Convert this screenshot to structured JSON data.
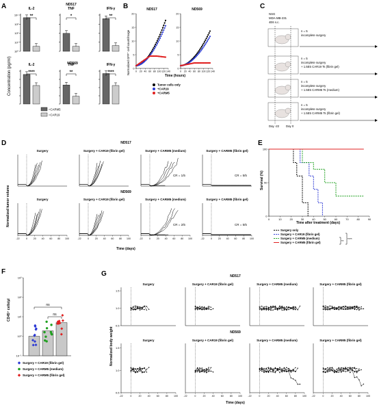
{
  "panels": {
    "A": {
      "letter": "A",
      "ylabel": "Concentration (pg/ml)",
      "rows": [
        {
          "line_title": "",
          "subplots": [
            {
              "title": "IL-2",
              "sig": "**",
              "values": [
                12000,
                4
              ]
            },
            {
              "title": "ND517\nTNF",
              "sig": "*",
              "values": [
                150,
                4
              ]
            },
            {
              "title": "IFN-γ",
              "sig": "**",
              "values": [
                9000,
                5
              ]
            }
          ]
        },
        {
          "line_title": "ND569",
          "subplots": [
            {
              "title": "IL-2",
              "sig": "****",
              "values": [
                9000,
                300
              ]
            },
            {
              "title": "TNF",
              "sig": "**",
              "values": [
                350,
                11
              ]
            },
            {
              "title": "IFN-γ",
              "sig": "****",
              "values": [
                12000,
                300
              ]
            }
          ]
        }
      ],
      "ticks_row1": [
        "10⁴",
        "10³",
        "10²",
        "10¹",
        "10⁰"
      ],
      "legend": [
        "=CARM5",
        "=CAR19"
      ],
      "colors": {
        "carm5": "#666666",
        "car19": "#cccccc"
      }
    },
    "B": {
      "letter": "B",
      "titles": [
        "ND517",
        "ND569"
      ],
      "ylabel": "Normalized GFP⁺ cell count/image",
      "xlabel": "Time (hours)",
      "xticks": [
        "0",
        "20",
        "40",
        "60",
        "80",
        "100",
        "120",
        "140"
      ],
      "yticks": [
        "0",
        "5",
        "10",
        "15",
        "20"
      ],
      "legend": [
        "Tumor cells only",
        "+CAR19",
        "+CARM5"
      ],
      "colors": [
        "#000000",
        "#2b3bd6",
        "#e02020"
      ]
    },
    "C": {
      "letter": "C",
      "header": [
        "NSG",
        "MDA-MB-231",
        "4E6 s.c."
      ],
      "groups": [
        {
          "n": "n = 5",
          "desc": [
            "incomplete surgery"
          ]
        },
        {
          "n": "n = 5",
          "desc": [
            "incomplete surgery",
            "+ 1.5E5 CAR19 Ts (fibrin gel)"
          ]
        },
        {
          "n": "n = 5",
          "desc": [
            "incomplete surgery",
            "+ 1.5E5 CARM5 Ts (medium)"
          ]
        },
        {
          "n": "n = 5",
          "desc": [
            "incomplete surgery",
            "+ 1.5E5 CARM5 Ts (fibrin gel)"
          ]
        }
      ],
      "days": [
        "Day -22",
        "Day 0"
      ]
    },
    "D": {
      "letter": "D",
      "line1": "ND517",
      "line2": "ND569",
      "ylabel": "Normalized tumor volume",
      "xlabel": "Time (days)",
      "cols": [
        "Surgery",
        "Surgery + CAR19 (fibrin gel)",
        "Surgery + CARM5 (medium)",
        "Surgery + CARM5 (fibrin gel)"
      ],
      "cr_row1": [
        "",
        "",
        "CR = 1/5",
        "CR = 5/5"
      ],
      "cr_row2": [
        "",
        "",
        "CR = 2/5",
        "CR = 5/5"
      ],
      "xticks": [
        "-22",
        "0",
        "20",
        "40",
        "60",
        "80",
        "100"
      ]
    },
    "E": {
      "letter": "E",
      "ylabel": "Survival (%)",
      "xlabel": "Time after treatment (days)",
      "xticks": [
        "0",
        "10",
        "20",
        "30",
        "40",
        "50",
        "60",
        "70",
        "80",
        "90"
      ],
      "yticks": [
        "0",
        "50",
        "100"
      ],
      "legend": [
        "Surgery only",
        "Surgery + CAR19 (fibrin gel)",
        "Surgery + CARM5 (medium)",
        "Surgery + CARM5 (fibrin gel)"
      ],
      "colors": [
        "#000000",
        "#2a37d4",
        "#1fa01f",
        "#e02020"
      ],
      "sig": [
        "**",
        "****"
      ]
    },
    "F": {
      "letter": "F",
      "ylabel": "CD45⁺ cells/µl",
      "sig": [
        "ns",
        "ns"
      ],
      "yticks": [
        "10³",
        "10²",
        "10¹",
        "10⁰",
        "10⁻¹"
      ],
      "means": [
        1,
        1.9,
        5
      ],
      "legend": [
        "Surgery + CAR19 (fibrin gel)",
        "Surgery + CARM5 (medium)",
        "Surgery + CARM5 (fibrin gel)"
      ],
      "colors": [
        "#2a37d4",
        "#1fa01f",
        "#e02020"
      ]
    },
    "G": {
      "letter": "G",
      "line1": "ND517",
      "line2": "ND569",
      "ylabel": "Normalized body weight",
      "xlabel": "Time (days)",
      "cols": [
        "Surgery",
        "Surgery + CAR19 (fibrin gel)",
        "Surgery + CARM5 (medium)",
        "Surgery + CARM5 (fibrin gel)"
      ],
      "yticks": [
        "1.5",
        "1.0",
        "0.5"
      ],
      "xticks": [
        "-22",
        "0",
        "20",
        "40",
        "60",
        "80",
        "100"
      ]
    }
  }
}
